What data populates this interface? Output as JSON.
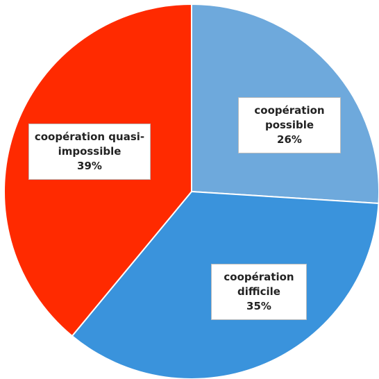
{
  "chart_data": {
    "type": "pie",
    "categories": [
      "coopération possible",
      "coopération difficile",
      "coopération quasi-impossible"
    ],
    "values": [
      26,
      35,
      39
    ],
    "value_labels": [
      "26%",
      "35%",
      "39%"
    ],
    "colors": [
      "#6ea9dc",
      "#3a93dc",
      "#ff2a00"
    ]
  }
}
